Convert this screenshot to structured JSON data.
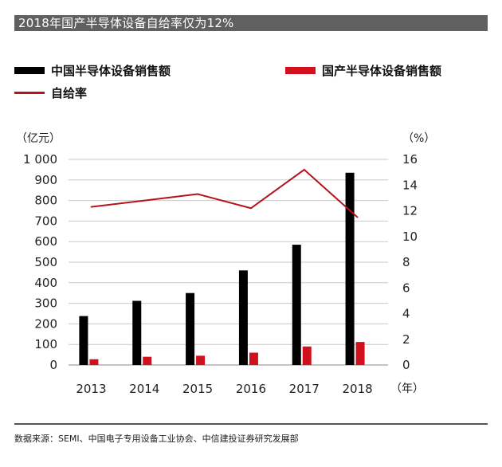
{
  "title": "2018年国产半导体设备自给率仅为12%",
  "legend": {
    "china_sales": "中国半导体设备销售额",
    "domestic_sales": "国产半导体设备销售额",
    "self_sufficiency": "自给率"
  },
  "colors": {
    "black": "#000000",
    "red": "#d0101c",
    "line_red": "#b5121b"
  },
  "source": "数据来源：SEMI、中国电子专用设备工业协会、中信建投证券研究发展部",
  "chart_data": {
    "type": "bar",
    "categories": [
      "2013",
      "2014",
      "2015",
      "2016",
      "2017",
      "2018"
    ],
    "series": [
      {
        "name": "中国半导体设备销售额",
        "values": [
          238,
          312,
          350,
          460,
          585,
          935
        ],
        "axis": "left"
      },
      {
        "name": "国产半导体设备销售额",
        "values": [
          28,
          40,
          45,
          60,
          90,
          112
        ],
        "axis": "left"
      },
      {
        "name": "自给率",
        "type": "line",
        "values": [
          12.3,
          12.8,
          13.3,
          12.2,
          15.2,
          11.5
        ],
        "axis": "right"
      }
    ],
    "ylabel_left": "（亿元）",
    "ylabel_right": "（%）",
    "xlabel": "（年）",
    "ylim_left": [
      0,
      1000
    ],
    "ylim_right": [
      0,
      16
    ],
    "left_ticks": [
      "0",
      "100",
      "200",
      "300",
      "400",
      "500",
      "600",
      "700",
      "800",
      "900",
      "1 000"
    ],
    "left_tick_values": [
      0,
      100,
      200,
      300,
      400,
      500,
      600,
      700,
      800,
      900,
      1000
    ],
    "right_ticks": [
      "0",
      "2",
      "4",
      "6",
      "8",
      "10",
      "12",
      "14",
      "16"
    ],
    "right_tick_values": [
      0,
      2,
      4,
      6,
      8,
      10,
      12,
      14,
      16
    ]
  }
}
